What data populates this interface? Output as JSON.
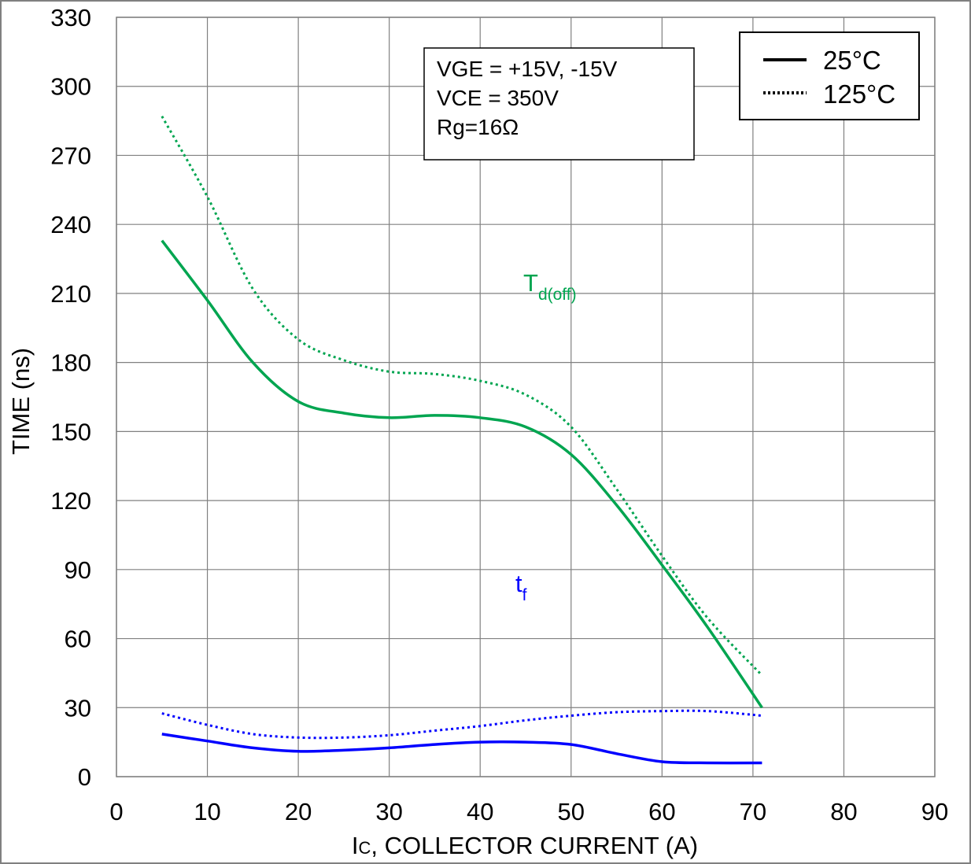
{
  "chart_data": {
    "type": "line",
    "title": "",
    "xlabel_prefix": "I",
    "xlabel_sub": "C",
    "xlabel_rest": ", COLLECTOR CURRENT (A)",
    "ylabel": "TIME (ns)",
    "xlim": [
      0,
      90
    ],
    "ylim": [
      0,
      330
    ],
    "xticks": [
      0,
      10,
      20,
      30,
      40,
      50,
      60,
      70,
      80,
      90
    ],
    "yticks": [
      0,
      30,
      60,
      90,
      120,
      150,
      180,
      210,
      240,
      270,
      300,
      330
    ],
    "grid": true,
    "conditions": [
      "VGE = +15V, -15V",
      "VCE = 350V",
      "Rg=16Ω"
    ],
    "legend": {
      "position": "top-right",
      "entries": [
        {
          "label": "25°C",
          "style": "solid"
        },
        {
          "label": "125°C",
          "style": "dotted"
        }
      ]
    },
    "annotations": [
      {
        "main": "T",
        "sub": "d(off)",
        "color": "#00a550",
        "x": 45,
        "y": 208
      },
      {
        "main": "t",
        "sub": "f",
        "color": "#0000ff",
        "x": 45,
        "y": 79
      }
    ],
    "series": [
      {
        "name": "Td(off) 25°C",
        "color": "#00a550",
        "style": "solid",
        "x": [
          5,
          10,
          15,
          20,
          25,
          30,
          35,
          40,
          45,
          50,
          55,
          60,
          65,
          71
        ],
        "y": [
          233,
          207,
          180,
          163,
          158,
          156,
          157,
          156,
          152,
          140,
          118,
          92,
          65,
          30
        ]
      },
      {
        "name": "Td(off) 125°C",
        "color": "#00a550",
        "style": "dotted",
        "x": [
          5,
          10,
          15,
          20,
          25,
          30,
          35,
          40,
          45,
          50,
          55,
          60,
          65,
          71
        ],
        "y": [
          287,
          252,
          212,
          190,
          181,
          176,
          175,
          172,
          166,
          152,
          125,
          96,
          69,
          44
        ]
      },
      {
        "name": "tf 25°C",
        "color": "#0000ff",
        "style": "solid",
        "x": [
          5,
          10,
          15,
          20,
          25,
          30,
          35,
          40,
          45,
          50,
          55,
          60,
          65,
          71
        ],
        "y": [
          18.5,
          15.5,
          12.5,
          11,
          11.5,
          12.5,
          14,
          15,
          15,
          14,
          10,
          6.5,
          6,
          6
        ]
      },
      {
        "name": "tf 125°C",
        "color": "#0000ff",
        "style": "dotted",
        "x": [
          5,
          10,
          15,
          20,
          25,
          30,
          35,
          40,
          45,
          50,
          55,
          60,
          65,
          71
        ],
        "y": [
          27.5,
          22.5,
          18.5,
          17,
          17,
          18,
          20,
          22,
          24.5,
          26.5,
          28,
          28.5,
          28.5,
          26.5
        ]
      }
    ]
  }
}
